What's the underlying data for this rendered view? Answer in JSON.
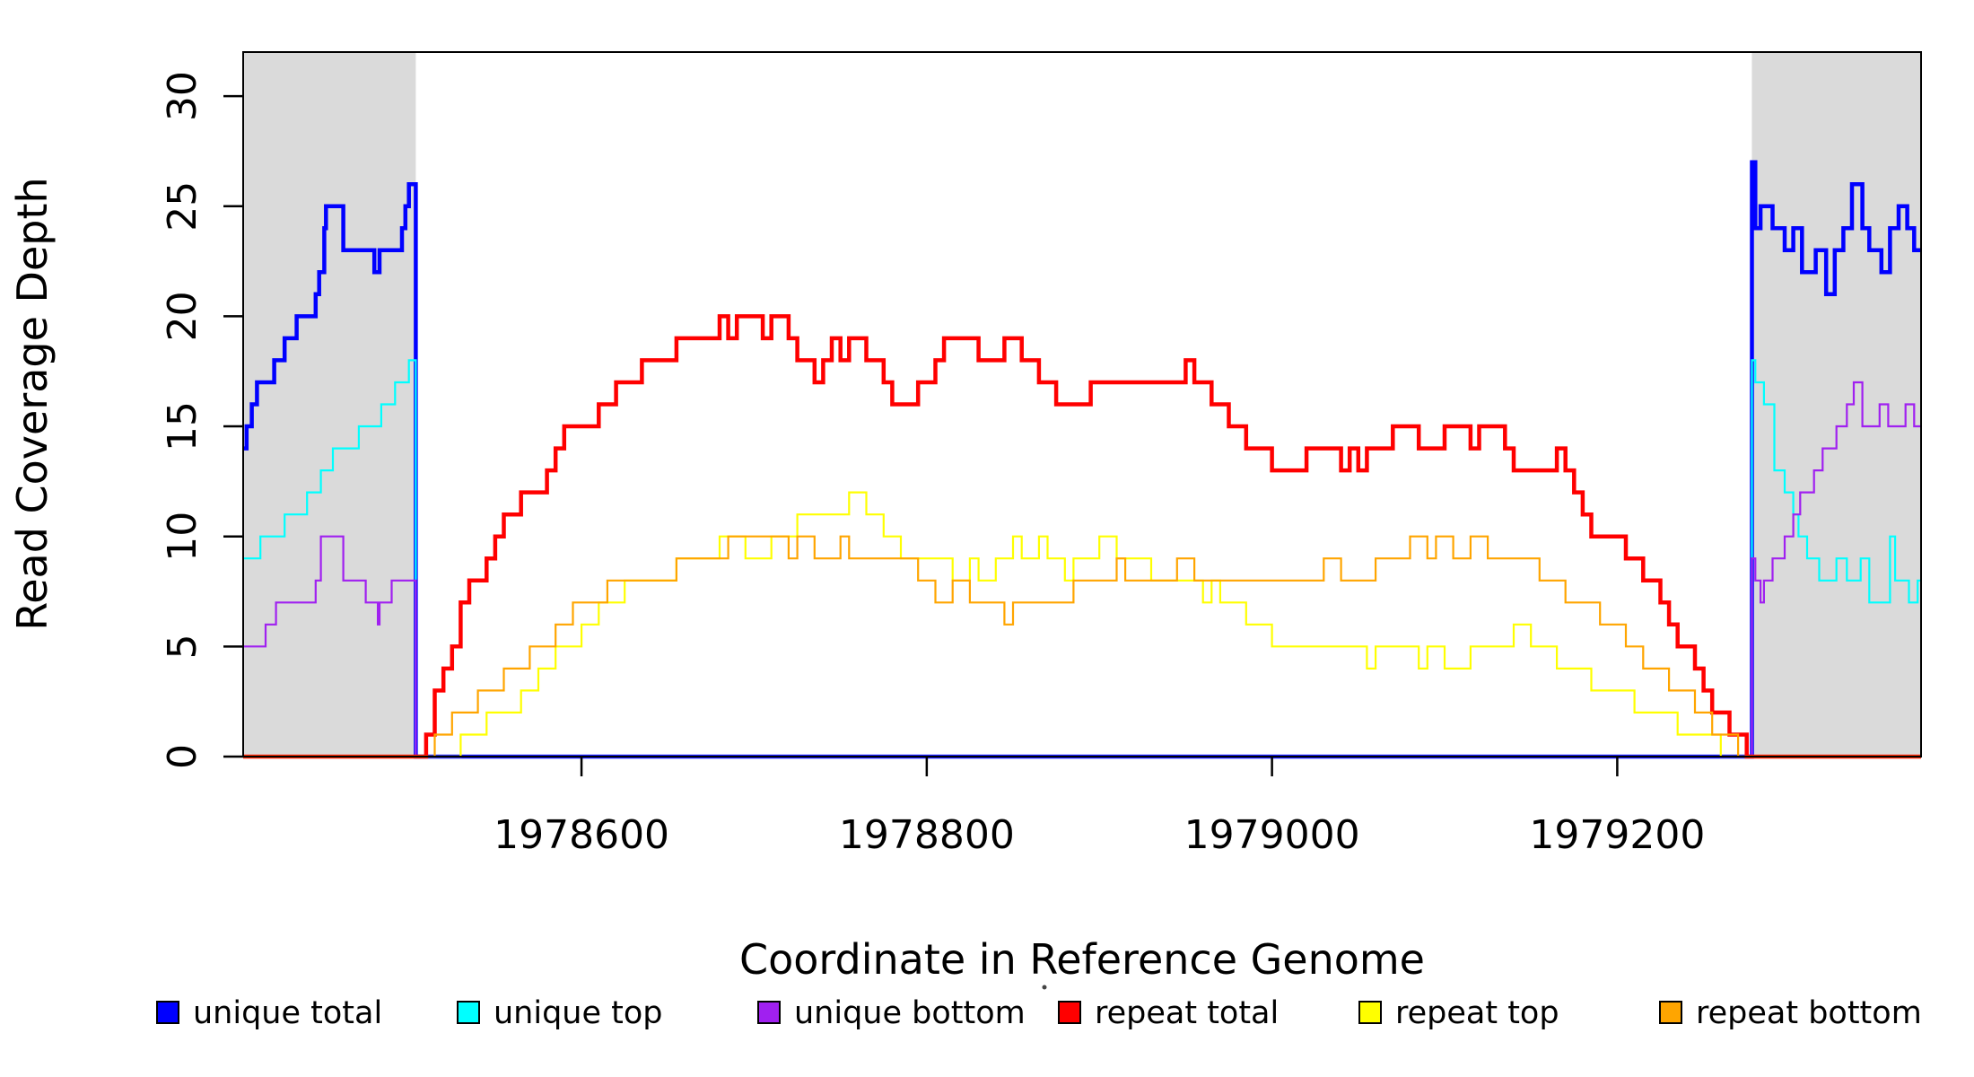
{
  "figure": {
    "kind": "R-base-graphics coverage plot",
    "background": "#ffffff",
    "plot_border_color": "#000000"
  },
  "chart_data": {
    "type": "line",
    "line_style": "step",
    "title": "",
    "xlabel": "Coordinate in Reference Genome",
    "ylabel": "Read Coverage Depth",
    "xlim": [
      1978404,
      1979376
    ],
    "ylim": [
      0,
      32
    ],
    "grid": false,
    "legend_position": "bottom",
    "x_ticks": [
      1978600,
      1978800,
      1979000,
      1979200
    ],
    "y_ticks": [
      0,
      5,
      10,
      15,
      20,
      25,
      30
    ],
    "shaded_regions": [
      {
        "name": "unique-flank-left",
        "x0": 1978404,
        "x1": 1978504,
        "fill": "#DADADA"
      },
      {
        "name": "unique-flank-right",
        "x0": 1979278,
        "x1": 1979376,
        "fill": "#DADADA"
      }
    ],
    "series": [
      {
        "name": "unique-total",
        "label": "unique total",
        "color": "#0000FF",
        "width": 4.5,
        "format": "breakpoints",
        "data": [
          [
            1978404,
            14
          ],
          [
            1978406,
            15
          ],
          [
            1978409,
            16
          ],
          [
            1978412,
            17
          ],
          [
            1978422,
            18
          ],
          [
            1978428,
            19
          ],
          [
            1978435,
            20
          ],
          [
            1978446,
            21
          ],
          [
            1978448,
            22
          ],
          [
            1978451,
            24
          ],
          [
            1978452,
            25
          ],
          [
            1978462,
            23
          ],
          [
            1978480,
            22
          ],
          [
            1978483,
            23
          ],
          [
            1978496,
            24
          ],
          [
            1978498,
            25
          ],
          [
            1978500,
            26
          ],
          [
            1978504,
            0
          ],
          [
            1979278,
            27
          ],
          [
            1979280,
            24
          ],
          [
            1979283,
            25
          ],
          [
            1979290,
            24
          ],
          [
            1979297,
            23
          ],
          [
            1979302,
            24
          ],
          [
            1979307,
            22
          ],
          [
            1979315,
            23
          ],
          [
            1979321,
            21
          ],
          [
            1979326,
            23
          ],
          [
            1979331,
            24
          ],
          [
            1979336,
            26
          ],
          [
            1979342,
            24
          ],
          [
            1979346,
            23
          ],
          [
            1979353,
            22
          ],
          [
            1979358,
            24
          ],
          [
            1979363,
            25
          ],
          [
            1979368,
            24
          ],
          [
            1979372,
            23
          ]
        ]
      },
      {
        "name": "unique-top",
        "label": "unique top",
        "color": "#00FFFF",
        "width": 2.2,
        "format": "breakpoints",
        "data": [
          [
            1978404,
            9
          ],
          [
            1978414,
            10
          ],
          [
            1978428,
            11
          ],
          [
            1978441,
            12
          ],
          [
            1978449,
            13
          ],
          [
            1978456,
            14
          ],
          [
            1978471,
            15
          ],
          [
            1978484,
            16
          ],
          [
            1978492,
            17
          ],
          [
            1978500,
            18
          ],
          [
            1978504,
            0
          ],
          [
            1979278,
            18
          ],
          [
            1979280,
            17
          ],
          [
            1979285,
            16
          ],
          [
            1979291,
            13
          ],
          [
            1979297,
            12
          ],
          [
            1979302,
            11
          ],
          [
            1979305,
            10
          ],
          [
            1979310,
            9
          ],
          [
            1979317,
            8
          ],
          [
            1979327,
            9
          ],
          [
            1979333,
            8
          ],
          [
            1979341,
            9
          ],
          [
            1979346,
            7
          ],
          [
            1979358,
            10
          ],
          [
            1979361,
            8
          ],
          [
            1979369,
            7
          ],
          [
            1979374,
            8
          ]
        ]
      },
      {
        "name": "unique-bottom",
        "label": "unique bottom",
        "color": "#A020F0",
        "width": 2.2,
        "format": "breakpoints",
        "data": [
          [
            1978404,
            5
          ],
          [
            1978417,
            6
          ],
          [
            1978423,
            7
          ],
          [
            1978446,
            8
          ],
          [
            1978449,
            10
          ],
          [
            1978462,
            8
          ],
          [
            1978475,
            7
          ],
          [
            1978482,
            6
          ],
          [
            1978483,
            7
          ],
          [
            1978490,
            8
          ],
          [
            1978504,
            0
          ],
          [
            1979278,
            9
          ],
          [
            1979280,
            8
          ],
          [
            1979283,
            7
          ],
          [
            1979285,
            8
          ],
          [
            1979290,
            9
          ],
          [
            1979297,
            10
          ],
          [
            1979302,
            11
          ],
          [
            1979306,
            12
          ],
          [
            1979314,
            13
          ],
          [
            1979319,
            14
          ],
          [
            1979327,
            15
          ],
          [
            1979333,
            16
          ],
          [
            1979337,
            17
          ],
          [
            1979342,
            15
          ],
          [
            1979352,
            16
          ],
          [
            1979357,
            15
          ],
          [
            1979367,
            16
          ],
          [
            1979372,
            15
          ]
        ]
      },
      {
        "name": "repeat-total",
        "label": "repeat total",
        "color": "#FF0000",
        "width": 4.5,
        "format": "uniform",
        "x_start": 1978505,
        "x_step": 5,
        "values": [
          0,
          1,
          3,
          4,
          5,
          7,
          8,
          8,
          9,
          10,
          11,
          11,
          12,
          12,
          12,
          13,
          14,
          15,
          15,
          15,
          15,
          16,
          16,
          17,
          17,
          17,
          18,
          18,
          18,
          18,
          19,
          19,
          19,
          19,
          19,
          20,
          19,
          20,
          20,
          20,
          19,
          20,
          20,
          19,
          18,
          18,
          17,
          18,
          19,
          18,
          19,
          19,
          18,
          18,
          17,
          16,
          16,
          16,
          17,
          17,
          18,
          19,
          19,
          19,
          19,
          18,
          18,
          18,
          19,
          19,
          18,
          18,
          17,
          17,
          16,
          16,
          16,
          16,
          17,
          17,
          17,
          17,
          17,
          17,
          17,
          17,
          17,
          17,
          17,
          18,
          17,
          17,
          16,
          16,
          15,
          15,
          14,
          14,
          14,
          13,
          13,
          13,
          13,
          14,
          14,
          14,
          14,
          13,
          14,
          13,
          14,
          14,
          14,
          15,
          15,
          15,
          14,
          14,
          14,
          15,
          15,
          15,
          14,
          15,
          15,
          15,
          14,
          13,
          13,
          13,
          13,
          13,
          14,
          13,
          12,
          11,
          10,
          10,
          10,
          10,
          9,
          9,
          8,
          8,
          7,
          6,
          5,
          5,
          4,
          3,
          2,
          2,
          1,
          1,
          0
        ]
      },
      {
        "name": "repeat-top",
        "label": "repeat top",
        "color": "#FFFF00",
        "width": 2.2,
        "format": "uniform",
        "x_start": 1978505,
        "x_step": 5,
        "values": [
          0,
          0,
          0,
          0,
          0,
          1,
          1,
          1,
          2,
          2,
          2,
          2,
          3,
          3,
          4,
          4,
          5,
          5,
          5,
          6,
          6,
          7,
          7,
          7,
          8,
          8,
          8,
          8,
          8,
          8,
          9,
          9,
          9,
          9,
          9,
          10,
          10,
          10,
          9,
          9,
          9,
          10,
          10,
          10,
          11,
          11,
          11,
          11,
          11,
          11,
          12,
          12,
          11,
          11,
          10,
          10,
          9,
          9,
          9,
          9,
          9,
          9,
          8,
          8,
          9,
          8,
          8,
          9,
          9,
          10,
          9,
          9,
          10,
          9,
          9,
          8,
          9,
          9,
          9,
          10,
          10,
          9,
          9,
          9,
          9,
          8,
          8,
          8,
          8,
          8,
          8,
          7,
          8,
          7,
          7,
          7,
          6,
          6,
          6,
          5,
          5,
          5,
          5,
          5,
          5,
          5,
          5,
          5,
          5,
          5,
          4,
          5,
          5,
          5,
          5,
          5,
          4,
          5,
          5,
          4,
          4,
          4,
          5,
          5,
          5,
          5,
          5,
          6,
          6,
          5,
          5,
          5,
          4,
          4,
          4,
          4,
          3,
          3,
          3,
          3,
          3,
          2,
          2,
          2,
          2,
          2,
          1,
          1,
          1,
          1,
          1,
          0,
          0,
          0,
          0
        ]
      },
      {
        "name": "repeat-bottom",
        "label": "repeat bottom",
        "color": "#FFA500",
        "width": 2.2,
        "format": "uniform",
        "x_start": 1978505,
        "x_step": 5,
        "values": [
          0,
          0,
          1,
          1,
          2,
          2,
          2,
          3,
          3,
          3,
          4,
          4,
          4,
          5,
          5,
          5,
          6,
          6,
          7,
          7,
          7,
          7,
          8,
          8,
          8,
          8,
          8,
          8,
          8,
          8,
          9,
          9,
          9,
          9,
          9,
          9,
          10,
          10,
          10,
          10,
          10,
          10,
          10,
          9,
          10,
          10,
          9,
          9,
          9,
          10,
          9,
          9,
          9,
          9,
          9,
          9,
          9,
          9,
          8,
          8,
          7,
          7,
          8,
          8,
          7,
          7,
          7,
          7,
          6,
          7,
          7,
          7,
          7,
          7,
          7,
          7,
          8,
          8,
          8,
          8,
          8,
          9,
          8,
          8,
          8,
          8,
          8,
          8,
          9,
          9,
          8,
          8,
          8,
          8,
          8,
          8,
          8,
          8,
          8,
          8,
          8,
          8,
          8,
          8,
          8,
          9,
          9,
          8,
          8,
          8,
          8,
          9,
          9,
          9,
          9,
          10,
          10,
          9,
          10,
          10,
          9,
          9,
          10,
          10,
          9,
          9,
          9,
          9,
          9,
          9,
          8,
          8,
          8,
          7,
          7,
          7,
          7,
          6,
          6,
          6,
          5,
          5,
          4,
          4,
          4,
          3,
          3,
          3,
          2,
          2,
          1,
          1,
          1,
          0,
          0
        ]
      }
    ]
  },
  "legend": {
    "items": [
      {
        "label": "unique total",
        "color": "#0000FF"
      },
      {
        "label": "unique top",
        "color": "#00FFFF"
      },
      {
        "label": "unique bottom",
        "color": "#A020F0"
      },
      {
        "label": "repeat total",
        "color": "#FF0000"
      },
      {
        "label": "repeat top",
        "color": "#FFFF00"
      },
      {
        "label": "repeat bottom",
        "color": "#FFA500"
      }
    ],
    "stray_dot": "·"
  },
  "layout_text": {
    "x_axis_title": "Coordinate in Reference Genome",
    "y_axis_title": "Read Coverage Depth",
    "x_tick_labels": [
      "1978600",
      "1978800",
      "1979000",
      "1979200"
    ],
    "y_tick_labels": [
      "0",
      "5",
      "10",
      "15",
      "20",
      "25",
      "30"
    ]
  }
}
